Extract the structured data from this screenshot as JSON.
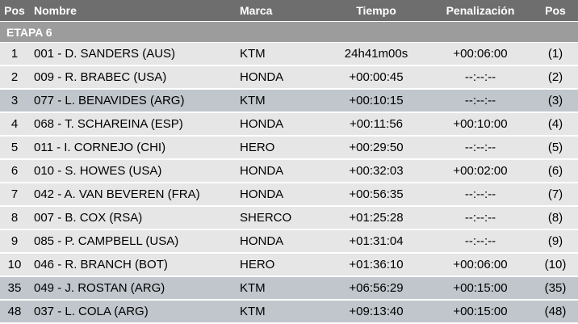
{
  "header": {
    "pos": "Pos",
    "name": "Nombre",
    "brand": "Marca",
    "time": "Tiempo",
    "penalty": "Penalización",
    "pos2": "Pos"
  },
  "stage": "ETAPA 6",
  "colors": {
    "header": "#6e6e6e",
    "stage": "#9c9c9c",
    "row": "#e6e6e6",
    "highlight": "#c0c6cc"
  },
  "rows": [
    {
      "pos": "1",
      "name": "001 - D. SANDERS (AUS)",
      "brand": "KTM",
      "time": "24h41m00s",
      "penalty": "+00:06:00",
      "pos2": "(1)",
      "hl": false
    },
    {
      "pos": "2",
      "name": "009 - R. BRABEC (USA)",
      "brand": "HONDA",
      "time": "+00:00:45",
      "penalty": "--:--:--",
      "pos2": "(2)",
      "hl": false
    },
    {
      "pos": "3",
      "name": "077 - L. BENAVIDES (ARG)",
      "brand": "KTM",
      "time": "+00:10:15",
      "penalty": "--:--:--",
      "pos2": "(3)",
      "hl": true
    },
    {
      "pos": "4",
      "name": "068 - T. SCHAREINA (ESP)",
      "brand": "HONDA",
      "time": "+00:11:56",
      "penalty": "+00:10:00",
      "pos2": "(4)",
      "hl": false
    },
    {
      "pos": "5",
      "name": "011 - I. CORNEJO (CHI)",
      "brand": "HERO",
      "time": "+00:29:50",
      "penalty": "--:--:--",
      "pos2": "(5)",
      "hl": false
    },
    {
      "pos": "6",
      "name": "010 - S. HOWES (USA)",
      "brand": "HONDA",
      "time": "+00:32:03",
      "penalty": "+00:02:00",
      "pos2": "(6)",
      "hl": false
    },
    {
      "pos": "7",
      "name": "042 - A. VAN BEVEREN (FRA)",
      "brand": "HONDA",
      "time": "+00:56:35",
      "penalty": "--:--:--",
      "pos2": "(7)",
      "hl": false
    },
    {
      "pos": "8",
      "name": "007 - B. COX (RSA)",
      "brand": "SHERCO",
      "time": "+01:25:28",
      "penalty": "--:--:--",
      "pos2": "(8)",
      "hl": false
    },
    {
      "pos": "9",
      "name": "085 - P. CAMPBELL (USA)",
      "brand": "HONDA",
      "time": "+01:31:04",
      "penalty": "--:--:--",
      "pos2": "(9)",
      "hl": false
    },
    {
      "pos": "10",
      "name": "046 - R. BRANCH (BOT)",
      "brand": "HERO",
      "time": "+01:36:10",
      "penalty": "+00:06:00",
      "pos2": "(10)",
      "hl": false
    },
    {
      "pos": "35",
      "name": "049 - J. ROSTAN (ARG)",
      "brand": "KTM",
      "time": "+06:56:29",
      "penalty": "+00:15:00",
      "pos2": "(35)",
      "hl": true
    },
    {
      "pos": "48",
      "name": "037 - L. COLA (ARG)",
      "brand": "KTM",
      "time": "+09:13:40",
      "penalty": "+00:15:00",
      "pos2": "(48)",
      "hl": true
    }
  ]
}
